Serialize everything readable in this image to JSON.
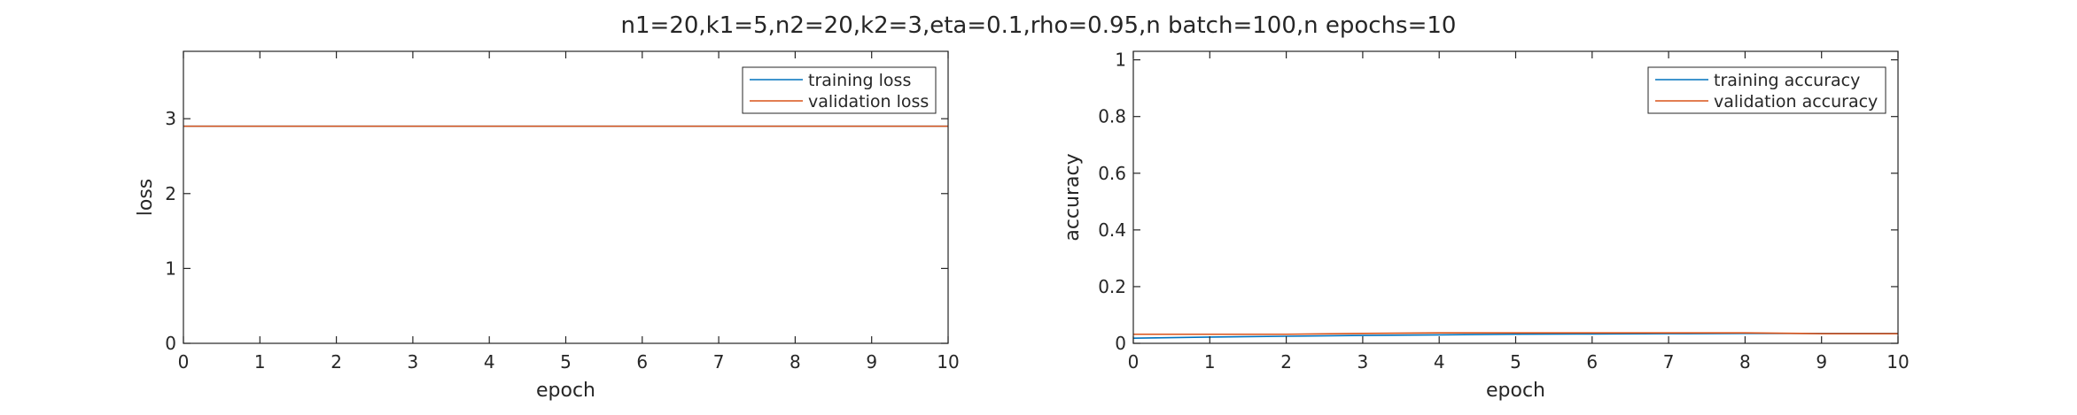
{
  "suptitle": "n1=20,k1=5,n2=20,k2=3,eta=0.1,rho=0.95,n batch=100,n epochs=10",
  "colors": {
    "training": "#0072BD",
    "validation": "#D95319",
    "axis": "#262626"
  },
  "chart_data": [
    {
      "type": "line",
      "title": "",
      "xlabel": "epoch",
      "ylabel": "loss",
      "xlim": [
        0,
        10
      ],
      "ylim": [
        0,
        3.9
      ],
      "xticks": [
        "0",
        "1",
        "2",
        "3",
        "4",
        "5",
        "6",
        "7",
        "8",
        "9",
        "10"
      ],
      "yticks": [
        "0",
        "1",
        "2",
        "3"
      ],
      "grid": false,
      "legend_position": "top-right",
      "x": [
        0,
        1,
        2,
        3,
        4,
        5,
        6,
        7,
        8,
        9,
        10
      ],
      "series": [
        {
          "name": "training loss",
          "values": [
            2.9,
            2.9,
            2.9,
            2.9,
            2.9,
            2.9,
            2.9,
            2.9,
            2.9,
            2.9,
            2.9
          ]
        },
        {
          "name": "validation loss",
          "values": [
            2.9,
            2.9,
            2.9,
            2.9,
            2.9,
            2.9,
            2.9,
            2.9,
            2.9,
            2.9,
            2.9
          ]
        }
      ]
    },
    {
      "type": "line",
      "title": "",
      "xlabel": "epoch",
      "ylabel": "accuracy",
      "xlim": [
        0,
        10
      ],
      "ylim": [
        0,
        1.03
      ],
      "xticks": [
        "0",
        "1",
        "2",
        "3",
        "4",
        "5",
        "6",
        "7",
        "8",
        "9",
        "10"
      ],
      "yticks": [
        "0",
        "0.2",
        "0.4",
        "0.6",
        "0.8",
        "1"
      ],
      "grid": false,
      "legend_position": "top-right",
      "x": [
        0,
        1,
        2,
        3,
        4,
        5,
        6,
        7,
        8,
        9,
        10
      ],
      "series": [
        {
          "name": "training accuracy",
          "values": [
            0.018,
            0.022,
            0.025,
            0.028,
            0.03,
            0.032,
            0.033,
            0.034,
            0.035,
            0.035,
            0.035
          ]
        },
        {
          "name": "validation accuracy",
          "values": [
            0.032,
            0.032,
            0.032,
            0.035,
            0.037,
            0.037,
            0.037,
            0.037,
            0.037,
            0.034,
            0.034
          ]
        }
      ]
    }
  ]
}
